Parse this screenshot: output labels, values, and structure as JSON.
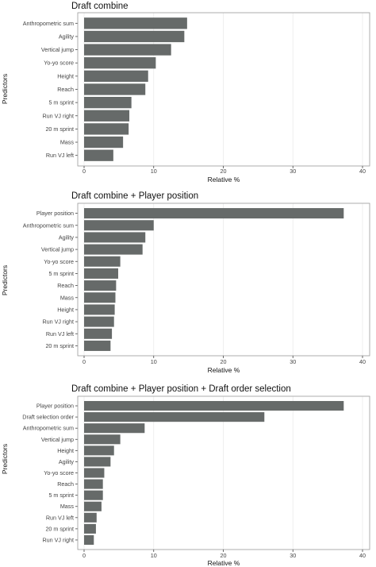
{
  "chart_data": [
    {
      "type": "bar",
      "orientation": "horizontal",
      "title": "Draft combine",
      "categories": [
        "Anthropometric sum",
        "Agility",
        "Vertical jump",
        "Yo-yo score",
        "Height",
        "Reach",
        "5 m sprint",
        "Run VJ right",
        "20 m sprint",
        "Mass",
        "Run VJ left"
      ],
      "values": [
        14.8,
        14.4,
        12.5,
        10.3,
        9.2,
        8.8,
        6.8,
        6.5,
        6.4,
        5.6,
        4.2
      ],
      "xlabel": "Relative %",
      "ylabel": "Predictors",
      "xlim": [
        0,
        40
      ],
      "xticks": [
        0,
        10,
        20,
        30,
        40
      ],
      "bar_color": "#666a69"
    },
    {
      "type": "bar",
      "orientation": "horizontal",
      "title": "Draft combine + Player position",
      "categories": [
        "Player position",
        "Anthropometric sum",
        "Agility",
        "Vertical jump",
        "Yo-yo score",
        "5 m sprint",
        "Reach",
        "Mass",
        "Height",
        "Run VJ right",
        "Run VJ left",
        "20 m sprint"
      ],
      "values": [
        37.3,
        10.0,
        8.8,
        8.4,
        5.2,
        4.9,
        4.6,
        4.5,
        4.4,
        4.3,
        4.0,
        3.8
      ],
      "xlabel": "Relative %",
      "ylabel": "Predictors",
      "xlim": [
        0,
        40
      ],
      "xticks": [
        0,
        10,
        20,
        30,
        40
      ],
      "bar_color": "#666a69"
    },
    {
      "type": "bar",
      "orientation": "horizontal",
      "title": "Draft combine + Player position + Draft order selection",
      "categories": [
        "Player position",
        "Draft selection order",
        "Anthropometric sum",
        "Vertical jump",
        "Height",
        "Agility",
        "Yo-yo score",
        "Reach",
        "5 m sprint",
        "Mass",
        "Run VJ left",
        "20 m sprint",
        "Run VJ right"
      ],
      "values": [
        37.3,
        25.9,
        8.7,
        5.2,
        4.3,
        3.8,
        2.9,
        2.7,
        2.7,
        2.5,
        1.8,
        1.7,
        1.4
      ],
      "xlabel": "Relative %",
      "ylabel": "Predictors",
      "xlim": [
        0,
        40
      ],
      "xticks": [
        0,
        10,
        20,
        30,
        40
      ],
      "bar_color": "#666a69"
    }
  ]
}
